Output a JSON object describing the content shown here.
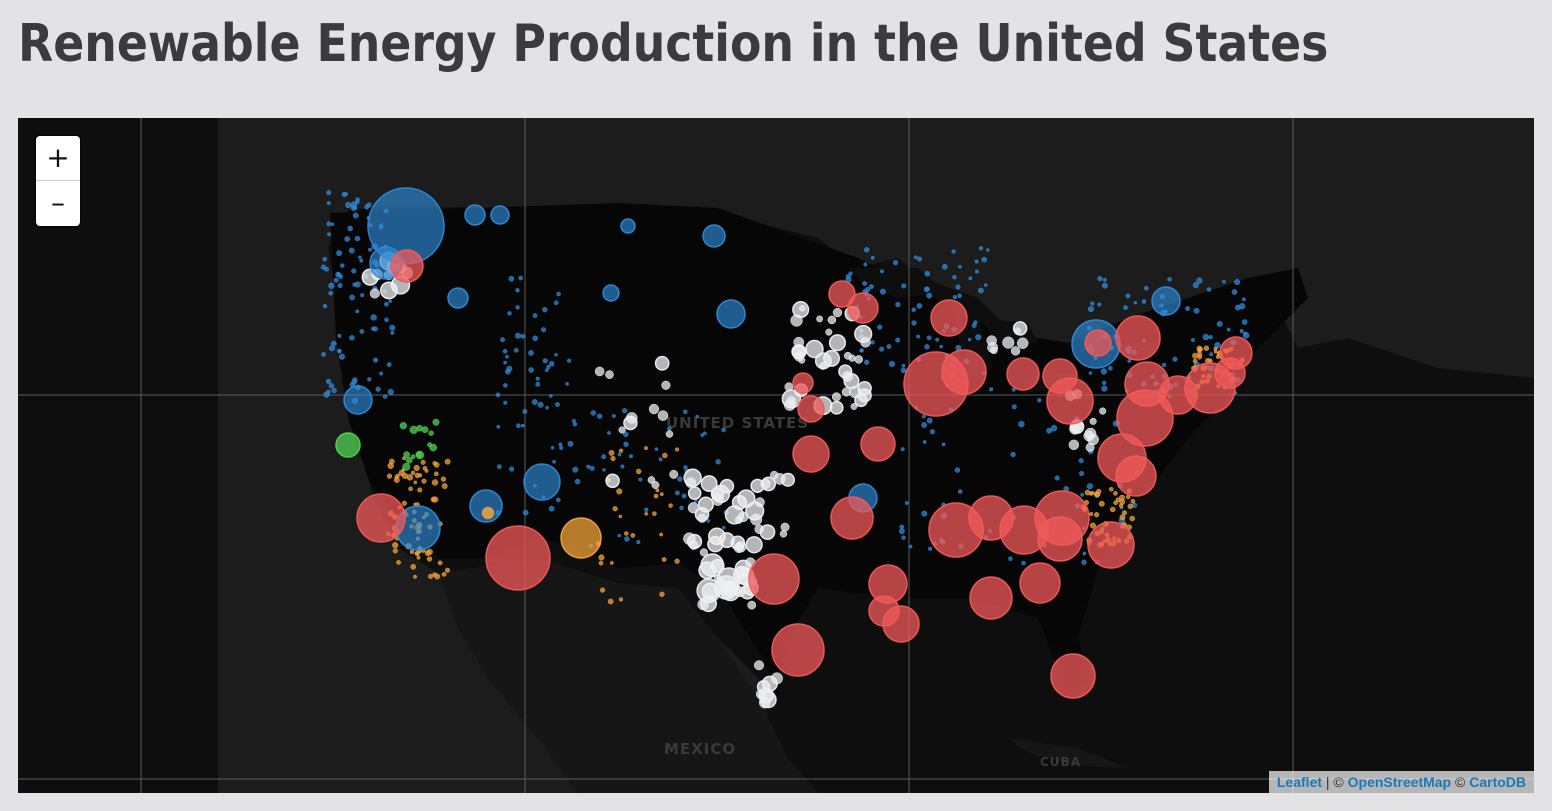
{
  "title": "Renewable Energy Production in the United States",
  "map": {
    "labels": {
      "country_us": "UNITED STATES",
      "country_mexico": "MEXICO",
      "country_cuba": "CUBA"
    },
    "zoom": {
      "in_label": "+",
      "out_label": "–"
    },
    "attribution": {
      "leaflet": "Leaflet",
      "sep1": " | © ",
      "osm": "OpenStreetMap",
      "sep2": " © ",
      "carto": "CartoDB"
    }
  },
  "colors": {
    "map_background": "#0e0e0e",
    "land": "#1c1c1c",
    "hydro": "#2f8ad8",
    "wind": "#eef0f3",
    "solar": "#f2a33a",
    "geothermal": "#4fd24f",
    "other": "#f25a5a",
    "link": "#1a7ab8"
  },
  "layers": [
    "hydro",
    "wind",
    "solar",
    "geothermal",
    "other"
  ]
}
